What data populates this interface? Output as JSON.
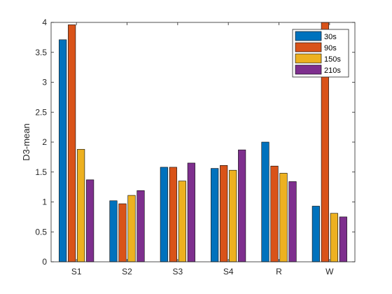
{
  "chart_data": {
    "type": "bar",
    "title": "",
    "xlabel": "",
    "ylabel": "D3-mean",
    "categories": [
      "S1",
      "S2",
      "S3",
      "S4",
      "R",
      "W"
    ],
    "ylim": [
      0,
      4
    ],
    "yticks": [
      0,
      0.5,
      1,
      1.5,
      2,
      2.5,
      3,
      3.5,
      4
    ],
    "ytick_labels": [
      "0",
      "0.5",
      "1",
      "1.5",
      "2",
      "2.5",
      "3",
      "3.5",
      "4"
    ],
    "grid": false,
    "legend_position": "top-right",
    "series": [
      {
        "name": "30s",
        "color": "#0072BD",
        "values": [
          3.71,
          1.02,
          1.58,
          1.56,
          2.0,
          0.93
        ]
      },
      {
        "name": "90s",
        "color": "#D95319",
        "values": [
          3.96,
          0.97,
          1.58,
          1.61,
          1.6,
          4.0
        ]
      },
      {
        "name": "150s",
        "color": "#EDB120",
        "values": [
          1.88,
          1.11,
          1.35,
          1.53,
          1.48,
          0.81
        ]
      },
      {
        "name": "210s",
        "color": "#7E2F8E",
        "values": [
          1.37,
          1.19,
          1.65,
          1.87,
          1.34,
          0.75
        ]
      }
    ]
  }
}
